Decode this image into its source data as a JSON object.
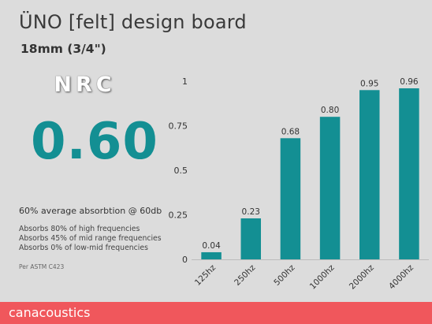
{
  "header": {
    "title": "ÜNO [felt] design board",
    "subtitle": "18mm (3/4\")"
  },
  "rating": {
    "label": "NRC",
    "value": "0.60"
  },
  "summary": {
    "average": "60% average absorbtion @ 60db",
    "lines": [
      "Absorbs 80% of high frequencies",
      "Absorbs 45% of mid range frequencies",
      "Absorbs 0% of low-mid frequencies"
    ],
    "standard": "Per ASTM C423"
  },
  "footer": {
    "brand": "canacoustics",
    "color": "#f0575c"
  },
  "chart_data": {
    "type": "bar",
    "categories": [
      "125hz",
      "250hz",
      "500hz",
      "1000hz",
      "2000hz",
      "4000hz"
    ],
    "values": [
      0.04,
      0.23,
      0.68,
      0.8,
      0.95,
      0.96
    ],
    "data_labels": [
      "0.04",
      "0.23",
      "0.68",
      "0.80",
      "0.95",
      "0.96"
    ],
    "yticks": [
      0,
      0.25,
      0.5,
      0.75,
      1
    ],
    "ytick_labels": [
      "0",
      "0.25",
      "0.5",
      "0.75",
      "1"
    ],
    "ylim": [
      0,
      1
    ],
    "bar_color": "#138f93",
    "grid": false,
    "title": "",
    "xlabel": "",
    "ylabel": ""
  }
}
